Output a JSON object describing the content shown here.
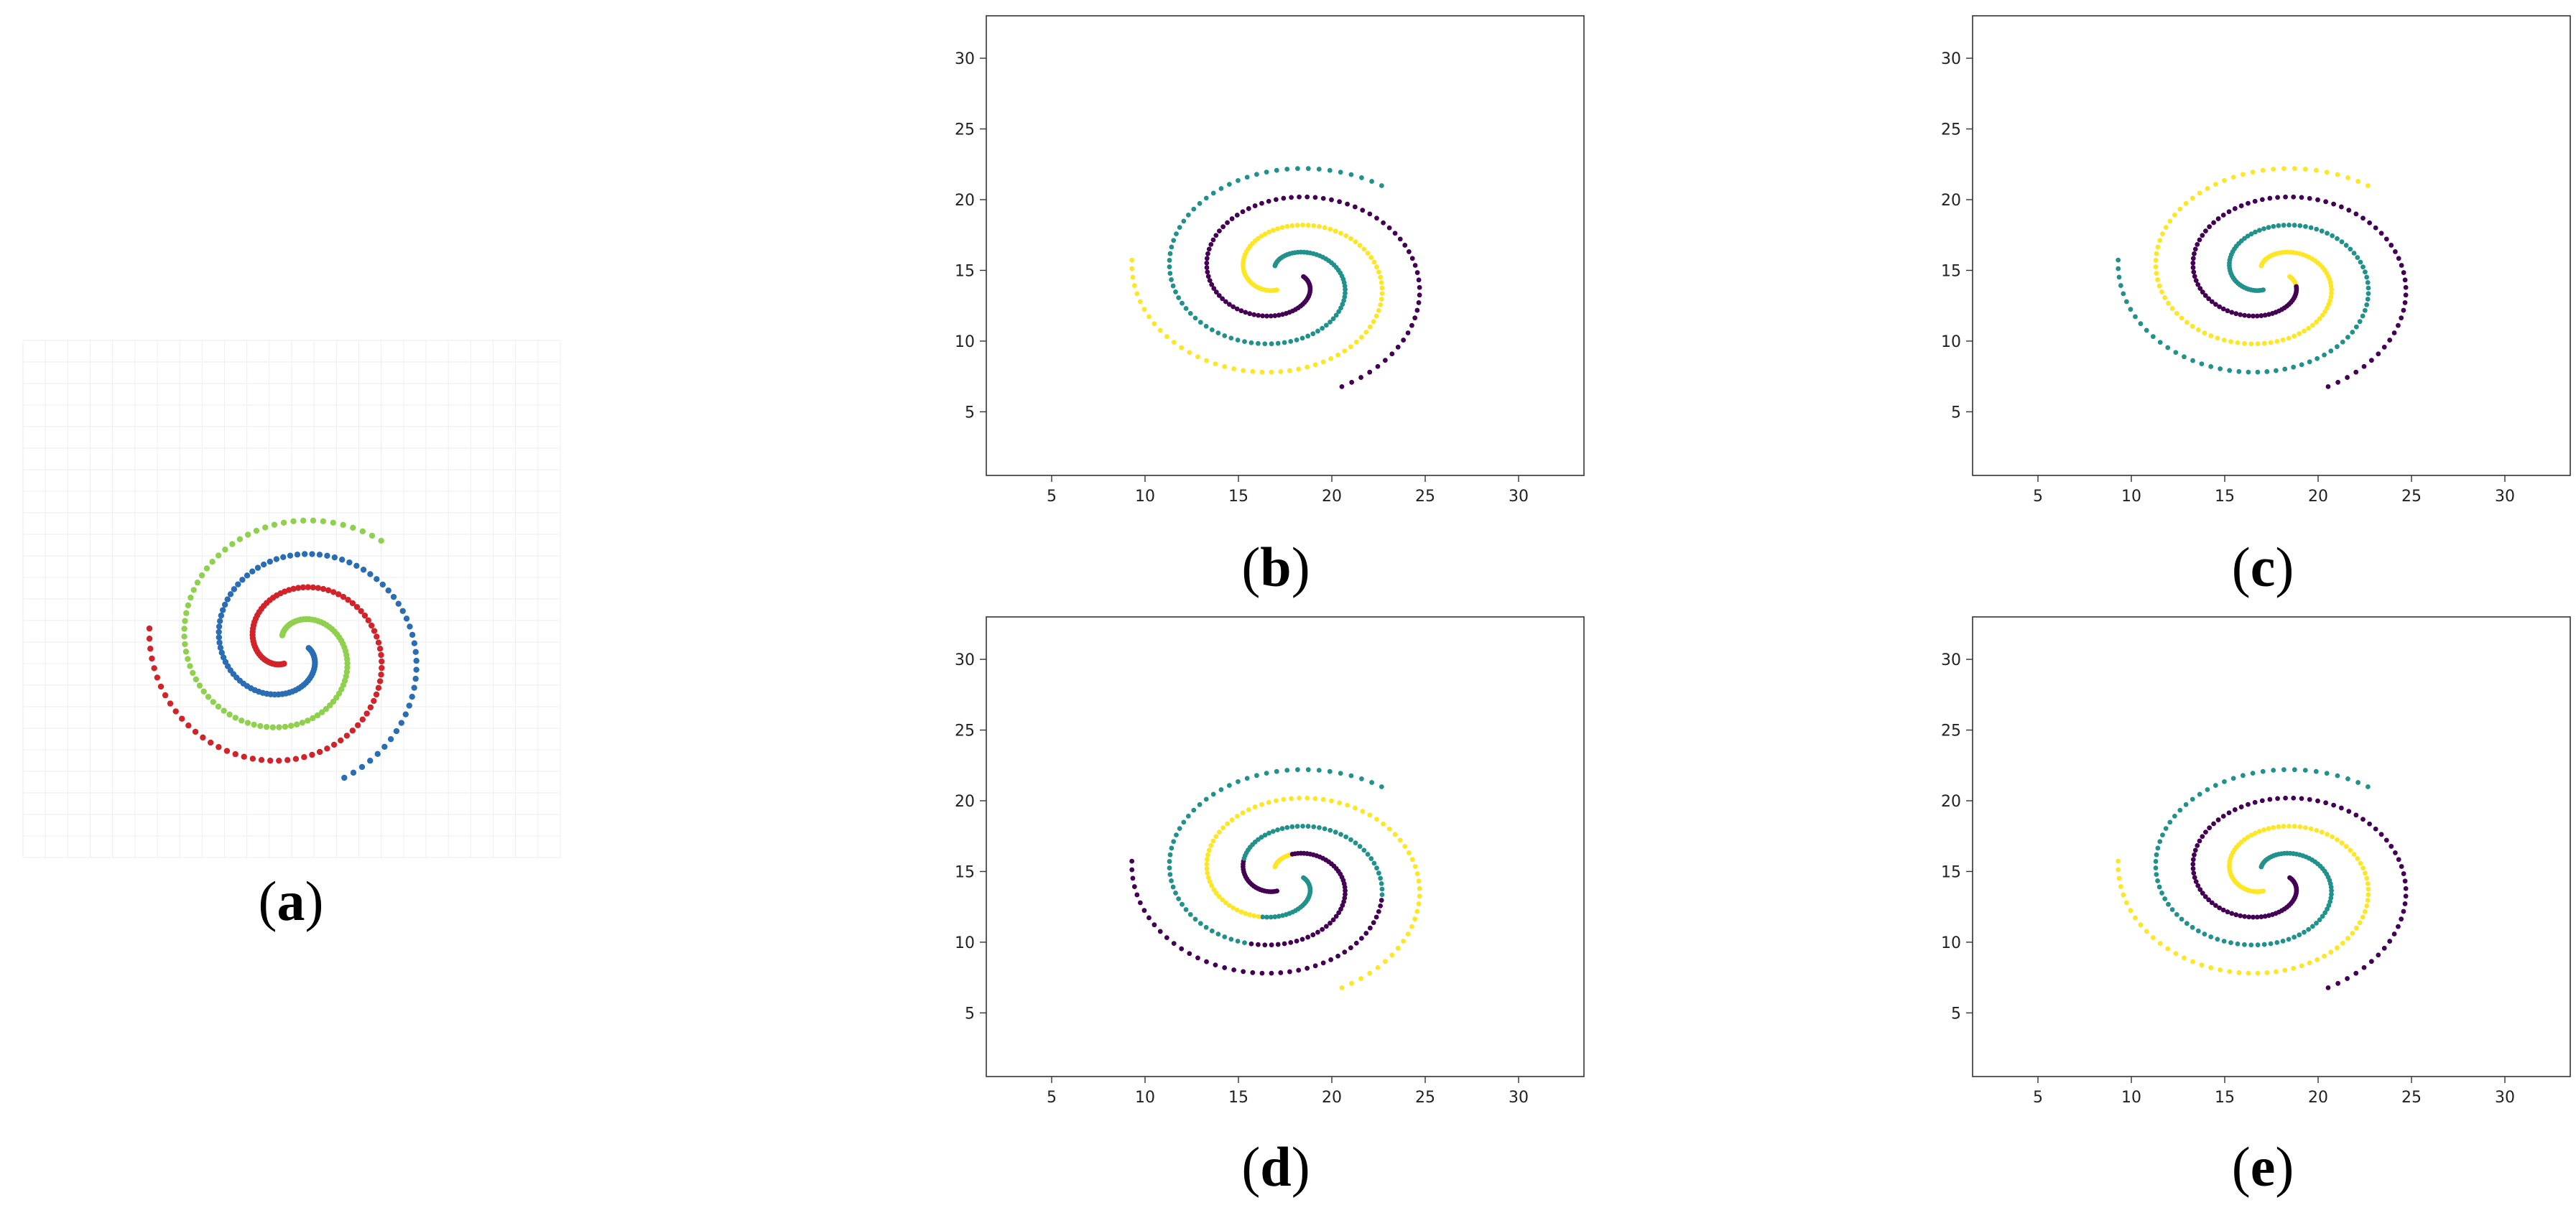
{
  "figure": {
    "captions": [
      "a",
      "b",
      "c",
      "d",
      "e"
    ]
  },
  "colors": {
    "groundtruth": {
      "red": "#d2232a",
      "blue": "#2a6db5",
      "green": "#8fd14f"
    },
    "viridis": {
      "purple": "#440154",
      "teal": "#21918c",
      "yellow": "#fde725"
    }
  },
  "chart_data": [
    {
      "panel": "a",
      "type": "scatter",
      "axes_visible": false,
      "grid": true,
      "xlim": [
        2,
        33
      ],
      "ylim": [
        2,
        33
      ],
      "spirals": [
        {
          "arm": "A",
          "color": "#d2232a"
        },
        {
          "arm": "B",
          "color": "#2a6db5"
        },
        {
          "arm": "C",
          "color": "#8fd14f"
        }
      ]
    },
    {
      "panel": "b",
      "type": "scatter",
      "xlim": [
        1.5,
        33.5
      ],
      "ylim": [
        0.5,
        33
      ],
      "xticks": [
        "5",
        "10",
        "15",
        "20",
        "25",
        "30"
      ],
      "yticks": [
        "5",
        "10",
        "15",
        "20",
        "25",
        "30"
      ],
      "grid": false,
      "segments": [
        {
          "arm": "A",
          "from": 0,
          "to": 1,
          "color": "#fde725"
        },
        {
          "arm": "B",
          "from": 0,
          "to": 1,
          "color": "#440154"
        },
        {
          "arm": "C",
          "from": 0,
          "to": 1,
          "color": "#21918c"
        }
      ]
    },
    {
      "panel": "c",
      "type": "scatter",
      "xlim": [
        1.5,
        33.5
      ],
      "ylim": [
        0.5,
        33
      ],
      "xticks": [
        "5",
        "10",
        "15",
        "20",
        "25",
        "30"
      ],
      "yticks": [
        "5",
        "10",
        "15",
        "20",
        "25",
        "30"
      ],
      "grid": false,
      "segments": [
        {
          "arm": "A",
          "from": 0,
          "to": 1,
          "color": "#21918c"
        },
        {
          "arm": "B",
          "from": 0,
          "to": 0.06,
          "color": "#fde725"
        },
        {
          "arm": "B",
          "from": 0.06,
          "to": 1,
          "color": "#440154"
        },
        {
          "arm": "C",
          "from": 0,
          "to": 1,
          "color": "#fde725"
        }
      ]
    },
    {
      "panel": "d",
      "type": "scatter",
      "xlim": [
        1.5,
        33.5
      ],
      "ylim": [
        0.5,
        33
      ],
      "xticks": [
        "5",
        "10",
        "15",
        "20",
        "25",
        "30"
      ],
      "yticks": [
        "5",
        "10",
        "15",
        "20",
        "25",
        "30"
      ],
      "grid": false,
      "segments": [
        {
          "arm": "A",
          "from": 0,
          "to": 0.22,
          "color": "#440154"
        },
        {
          "arm": "A",
          "from": 0.22,
          "to": 0.6,
          "color": "#21918c"
        },
        {
          "arm": "A",
          "from": 0.6,
          "to": 1,
          "color": "#440154"
        },
        {
          "arm": "B",
          "from": 0,
          "to": 0.28,
          "color": "#21918c"
        },
        {
          "arm": "B",
          "from": 0.28,
          "to": 1,
          "color": "#fde725"
        },
        {
          "arm": "C",
          "from": 0,
          "to": 0.1,
          "color": "#fde725"
        },
        {
          "arm": "C",
          "from": 0.1,
          "to": 0.55,
          "color": "#440154"
        },
        {
          "arm": "C",
          "from": 0.55,
          "to": 1,
          "color": "#21918c"
        }
      ]
    },
    {
      "panel": "e",
      "type": "scatter",
      "xlim": [
        1.5,
        33.5
      ],
      "ylim": [
        0.5,
        33
      ],
      "xticks": [
        "5",
        "10",
        "15",
        "20",
        "25",
        "30"
      ],
      "yticks": [
        "5",
        "10",
        "15",
        "20",
        "25",
        "30"
      ],
      "grid": false,
      "segments": [
        {
          "arm": "A",
          "from": 0,
          "to": 1,
          "color": "#fde725"
        },
        {
          "arm": "B",
          "from": 0,
          "to": 1,
          "color": "#440154"
        },
        {
          "arm": "C",
          "from": 0,
          "to": 1,
          "color": "#21918c"
        }
      ]
    }
  ]
}
